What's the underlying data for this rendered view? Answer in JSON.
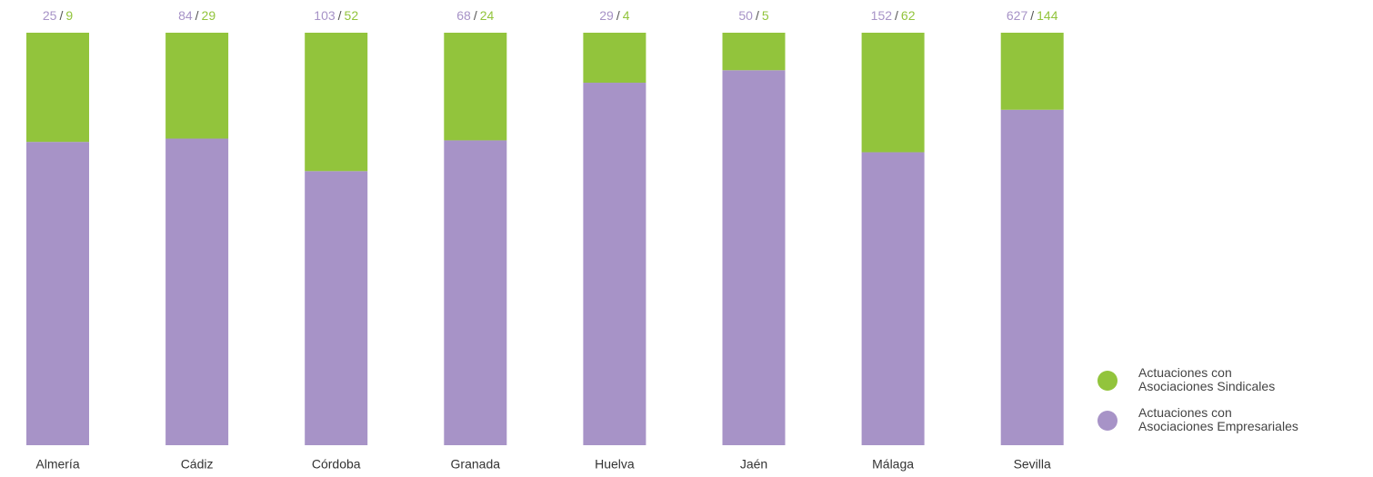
{
  "chart_data": {
    "type": "bar",
    "stacking": "percent",
    "categories": [
      "Almería",
      "Cádiz",
      "Córdoba",
      "Granada",
      "Huelva",
      "Jaén",
      "Málaga",
      "Sevilla"
    ],
    "series": [
      {
        "name": "Actuaciones con\nAsociaciones Empresariales",
        "color": "#a793c7",
        "values": [
          25,
          84,
          103,
          68,
          29,
          50,
          152,
          627
        ]
      },
      {
        "name": "Actuaciones con\nAsociaciones Sindicales",
        "color": "#92c43c",
        "values": [
          9,
          29,
          52,
          24,
          4,
          5,
          62,
          144
        ]
      }
    ],
    "value_separator": "/",
    "legend": "lower right"
  }
}
